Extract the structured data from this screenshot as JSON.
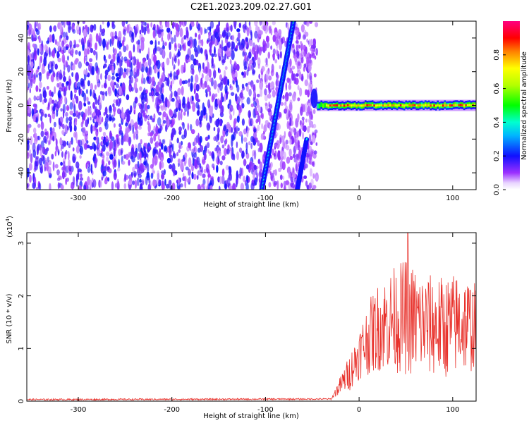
{
  "title": "C2E1.2023.209.02.27.G01",
  "colors": {
    "snr_line": "#e8302a",
    "signal_low": "#7b00ff",
    "signal_mid": "#00e6ff",
    "signal_high": "#ff0000"
  },
  "chart_data": [
    {
      "type": "heatmap",
      "xlabel": "Height of straight line (km)",
      "ylabel": "Frequency (Hz)",
      "xlim": [
        -355,
        125
      ],
      "ylim": [
        -50,
        50
      ],
      "xticks": [
        -300,
        -200,
        -100,
        0,
        100
      ],
      "yticks": [
        -40,
        -20,
        0,
        20,
        40
      ],
      "colorbar": {
        "label": "Normalized spectral amplitude",
        "range": [
          0,
          1
        ],
        "ticks": [
          "0.0",
          "0.2",
          "0.4",
          "0.6",
          "0.8"
        ],
        "tick_values": [
          0,
          0.2,
          0.4,
          0.6,
          0.8
        ]
      },
      "features": {
        "noise_region_x": [
          -355,
          -45
        ],
        "carrier_region_x": [
          -45,
          125
        ],
        "carrier_frequency": 0,
        "streak_1": {
          "x": [
            -104,
            -70
          ],
          "y": [
            -50,
            50
          ]
        },
        "streak_2": {
          "x": [
            -66,
            -56
          ],
          "y": [
            -50,
            -20
          ]
        }
      }
    },
    {
      "type": "line",
      "xlabel": "Height of straight line (km)",
      "ylabel": "SNR (10 * v/v)",
      "multiplier": "(x10",
      "multiplier_exp": "4",
      "multiplier_close": ")",
      "xlim": [
        -355,
        125
      ],
      "ylim": [
        0,
        3.2
      ],
      "xticks": [
        -300,
        -200,
        -100,
        0,
        100
      ],
      "yticks": [
        0,
        1,
        2,
        3
      ],
      "profile": {
        "x": [
          -355,
          -30,
          -22,
          -10,
          0,
          10,
          20,
          35,
          50,
          70,
          90,
          110,
          125
        ],
        "mean": [
          0.03,
          0.04,
          0.25,
          0.55,
          0.9,
          1.2,
          1.4,
          1.55,
          1.6,
          1.45,
          1.4,
          1.5,
          1.4
        ],
        "amplitude": [
          0.0,
          0.0,
          0.1,
          0.25,
          0.35,
          0.5,
          0.6,
          0.7,
          0.8,
          0.7,
          0.7,
          0.7,
          0.6
        ],
        "peak": {
          "x": 52,
          "y": 3.2
        }
      }
    }
  ]
}
